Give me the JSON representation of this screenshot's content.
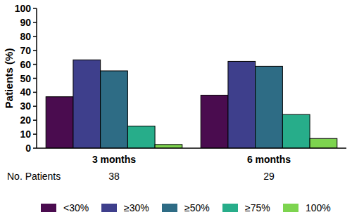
{
  "chart_data": {
    "type": "bar",
    "y_label": "Patients (%)",
    "categories": [
      "3 months",
      "6 months"
    ],
    "series": [
      {
        "name": "<30%",
        "color": "#4a0c4f",
        "values": [
          36.8,
          37.9
        ]
      },
      {
        "name": "≥30%",
        "color": "#3e3f8c",
        "values": [
          63.2,
          62.1
        ]
      },
      {
        "name": "≥50%",
        "color": "#2e6c85",
        "values": [
          55.3,
          58.6
        ]
      },
      {
        "name": "≥75%",
        "color": "#27ad8a",
        "values": [
          15.8,
          24.1
        ]
      },
      {
        "name": "100%",
        "color": "#7dd44f",
        "values": [
          2.6,
          6.9
        ]
      }
    ],
    "patient_counts_label": "No. Patients",
    "patient_counts": [
      38,
      29
    ],
    "ylim": [
      0,
      100
    ],
    "yticks": [
      0,
      10,
      20,
      30,
      40,
      50,
      60,
      70,
      80,
      90,
      100
    ],
    "grid": false,
    "legend": "bottom"
  }
}
